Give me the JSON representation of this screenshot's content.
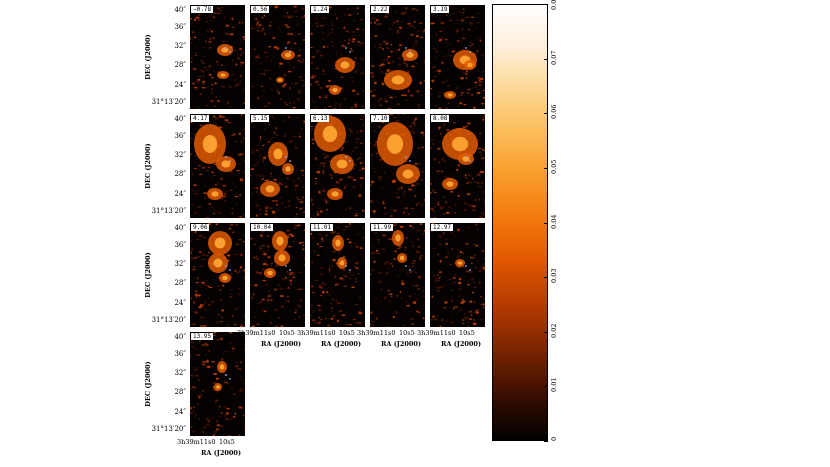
{
  "panels": [
    {
      "label": "−0.78"
    },
    {
      "label": "0.56"
    },
    {
      "label": "1.24"
    },
    {
      "label": "2.22"
    },
    {
      "label": "3.19"
    },
    {
      "label": "4.17"
    },
    {
      "label": "5.15"
    },
    {
      "label": "6.13"
    },
    {
      "label": "7.10"
    },
    {
      "label": "8.08"
    },
    {
      "label": "9.06"
    },
    {
      "label": "10.04"
    },
    {
      "label": "11.01"
    },
    {
      "label": "11.99"
    },
    {
      "label": "12.97"
    },
    {
      "label": "13.95"
    }
  ],
  "axes": {
    "ylabel": "DEC (J2000)",
    "xlabel": "RA (J2000)",
    "yticks": [
      "40″",
      "36″",
      "32″",
      "28″",
      "24″",
      "31°13′20″"
    ],
    "xticks": [
      "3h39m11s0",
      "10s5"
    ]
  },
  "colorbar": {
    "ticks": [
      "0",
      "0.01",
      "0.02",
      "0.03",
      "0.04",
      "0.05",
      "0.06",
      "0.07",
      "0.08"
    ],
    "min": 0,
    "max": 0.08,
    "colors": {
      "low": "#000000",
      "mid": "#e35a00",
      "high": "#ffffff"
    }
  }
}
